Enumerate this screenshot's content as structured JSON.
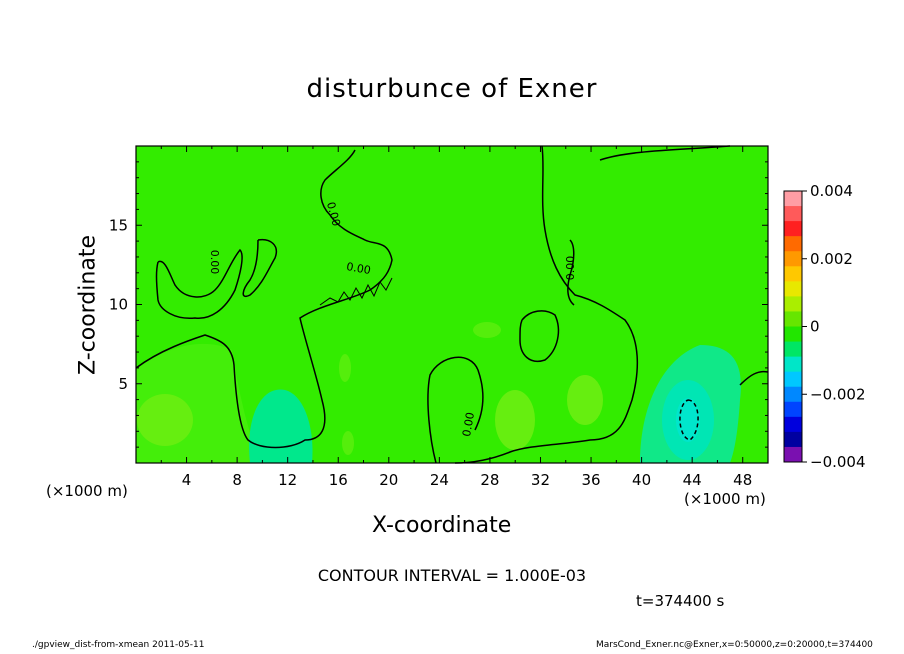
{
  "chart_data": {
    "type": "heatmap",
    "title": "disturbunce of Exner",
    "xlabel": "X-coordinate",
    "ylabel": "Z-coordinate",
    "x_unit": "(×1000 m)",
    "xlim": [
      0,
      50
    ],
    "ylim": [
      0,
      20
    ],
    "x_ticks": [
      4,
      8,
      12,
      16,
      20,
      24,
      28,
      32,
      36,
      40,
      44,
      48
    ],
    "y_ticks": [
      5,
      10,
      15
    ],
    "colorbar": {
      "range": [
        -0.004,
        0.004
      ],
      "tick_labels": [
        "0.004",
        "0.002",
        "0",
        "−0.002",
        "−0.004"
      ],
      "tick_values": [
        0.004,
        0.002,
        0,
        -0.002,
        -0.004
      ],
      "colors": [
        "#ff9da4",
        "#ff5a5a",
        "#ff2020",
        "#ff6a00",
        "#ff9900",
        "#ffc800",
        "#e8e800",
        "#aaee00",
        "#66e600",
        "#22e600",
        "#00e664",
        "#00e6c8",
        "#00c8ff",
        "#0088ff",
        "#0044ff",
        "#0000dd",
        "#0000a0",
        "#7a10b0"
      ]
    },
    "contour_labels": [
      "0.00",
      "0.00",
      "0.00",
      "0.00",
      "0.00"
    ],
    "contour_interval": "CONTOUR INTERVAL = 1.000E-03",
    "time": "t=374400 s",
    "background_value": 0.0003,
    "regions": [
      {
        "label": "negative anomaly core",
        "x": 43.5,
        "z": 2.5,
        "value": -0.0012
      },
      {
        "label": "weak negative",
        "x": 11,
        "z": 3,
        "value": -0.0004
      },
      {
        "label": "weak positive",
        "x": 3,
        "z": 2.5,
        "value": 0.0006
      }
    ]
  },
  "footer": {
    "left": "./gpview_dist-from-xmean  2011-05-11",
    "right": "MarsCond_Exner.nc@Exner,x=0:50000,z=0:20000,t=374400"
  }
}
